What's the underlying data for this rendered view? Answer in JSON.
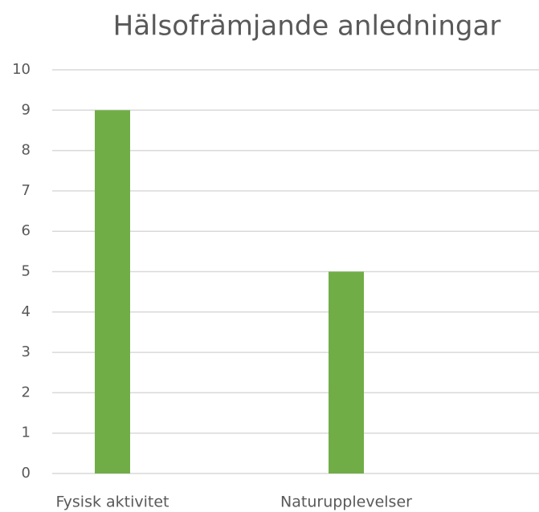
{
  "chart_data": {
    "type": "bar",
    "title": "Hälsofrämjande anledningar",
    "categories": [
      "Fysisk aktivitet",
      "Naturupplevelser"
    ],
    "values": [
      9,
      5
    ],
    "color": "#70ad47",
    "ylim": [
      0,
      10
    ],
    "yticks": [
      0,
      1,
      2,
      3,
      4,
      5,
      6,
      7,
      8,
      9,
      10
    ],
    "grid": true
  }
}
